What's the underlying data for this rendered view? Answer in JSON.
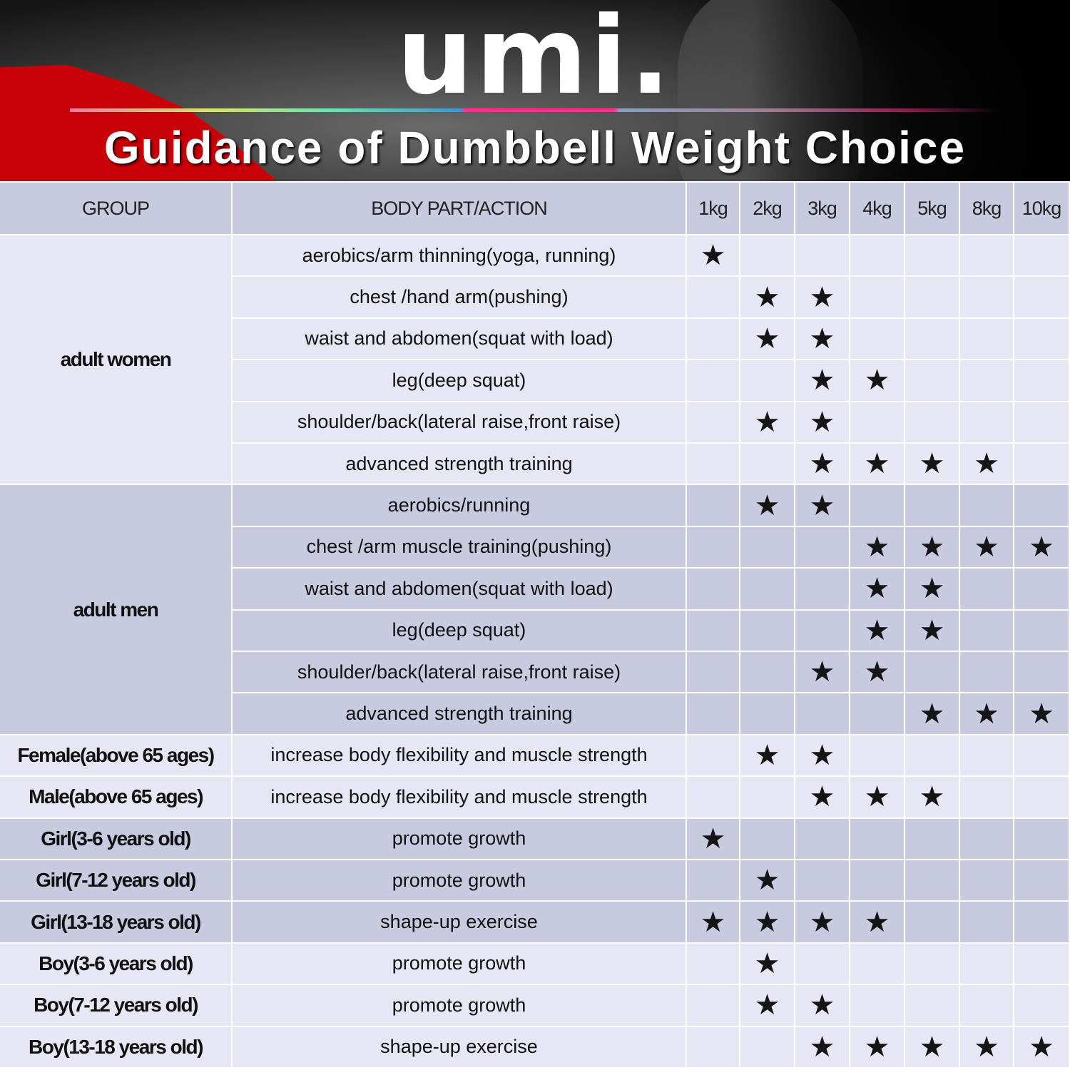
{
  "banner": {
    "logo": "umi.",
    "title": "Guidance of Dumbbell Weight Choice",
    "brand_red": "#c80008",
    "accent_pink": "#ff2d8c"
  },
  "table": {
    "headers": {
      "group": "GROUP",
      "action": "BODY PART/ACTION"
    },
    "weights": [
      "1kg",
      "2kg",
      "3kg",
      "4kg",
      "5kg",
      "8kg",
      "10kg"
    ],
    "colors": {
      "light": "#e6e6f4",
      "dark": "#c8cbe0"
    },
    "mark_icon": "star-icon",
    "groups": [
      {
        "name": "adult women",
        "shade": "light",
        "rows": [
          {
            "action": "aerobics/arm thinning(yoga, running)",
            "weights": [
              "1kg"
            ]
          },
          {
            "action": "chest /hand arm(pushing)",
            "weights": [
              "2kg",
              "3kg"
            ]
          },
          {
            "action": "waist and abdomen(squat with load)",
            "weights": [
              "2kg",
              "3kg"
            ]
          },
          {
            "action": "leg(deep squat)",
            "weights": [
              "3kg",
              "4kg"
            ]
          },
          {
            "action": "shoulder/back(lateral raise,front raise)",
            "weights": [
              "2kg",
              "3kg"
            ]
          },
          {
            "action": "advanced strength training",
            "weights": [
              "3kg",
              "4kg",
              "5kg",
              "8kg"
            ]
          }
        ]
      },
      {
        "name": "adult men",
        "shade": "dark",
        "rows": [
          {
            "action": "aerobics/running",
            "weights": [
              "2kg",
              "3kg"
            ]
          },
          {
            "action": "chest /arm muscle training(pushing)",
            "weights": [
              "4kg",
              "5kg",
              "8kg",
              "10kg"
            ]
          },
          {
            "action": "waist and abdomen(squat with load)",
            "weights": [
              "4kg",
              "5kg"
            ]
          },
          {
            "action": "leg(deep squat)",
            "weights": [
              "4kg",
              "5kg"
            ]
          },
          {
            "action": "shoulder/back(lateral raise,front raise)",
            "weights": [
              "3kg",
              "4kg"
            ]
          },
          {
            "action": "advanced strength training",
            "weights": [
              "5kg",
              "8kg",
              "10kg"
            ]
          }
        ]
      },
      {
        "name": "Female(above 65 ages)",
        "shade": "light",
        "rows": [
          {
            "action": "increase body flexibility and muscle strength",
            "weights": [
              "2kg",
              "3kg"
            ]
          }
        ]
      },
      {
        "name": "Male(above 65 ages)",
        "shade": "light",
        "rows": [
          {
            "action": "increase body flexibility and muscle strength",
            "weights": [
              "3kg",
              "4kg",
              "5kg"
            ]
          }
        ]
      },
      {
        "name": "Girl(3-6 years old)",
        "shade": "dark",
        "rows": [
          {
            "action": "promote growth",
            "weights": [
              "1kg"
            ]
          }
        ]
      },
      {
        "name": "Girl(7-12 years old)",
        "shade": "dark",
        "rows": [
          {
            "action": "promote growth",
            "weights": [
              "2kg"
            ]
          }
        ]
      },
      {
        "name": "Girl(13-18 years old)",
        "shade": "dark",
        "rows": [
          {
            "action": "shape-up exercise",
            "weights": [
              "1kg",
              "2kg",
              "3kg",
              "4kg"
            ]
          }
        ]
      },
      {
        "name": "Boy(3-6 years old)",
        "shade": "light",
        "rows": [
          {
            "action": "promote growth",
            "weights": [
              "2kg"
            ]
          }
        ]
      },
      {
        "name": "Boy(7-12 years old)",
        "shade": "light",
        "rows": [
          {
            "action": "promote growth",
            "weights": [
              "2kg",
              "3kg"
            ]
          }
        ]
      },
      {
        "name": "Boy(13-18 years old)",
        "shade": "light",
        "rows": [
          {
            "action": "shape-up exercise",
            "weights": [
              "3kg",
              "4kg",
              "5kg",
              "8kg",
              "10kg"
            ]
          }
        ]
      }
    ]
  }
}
